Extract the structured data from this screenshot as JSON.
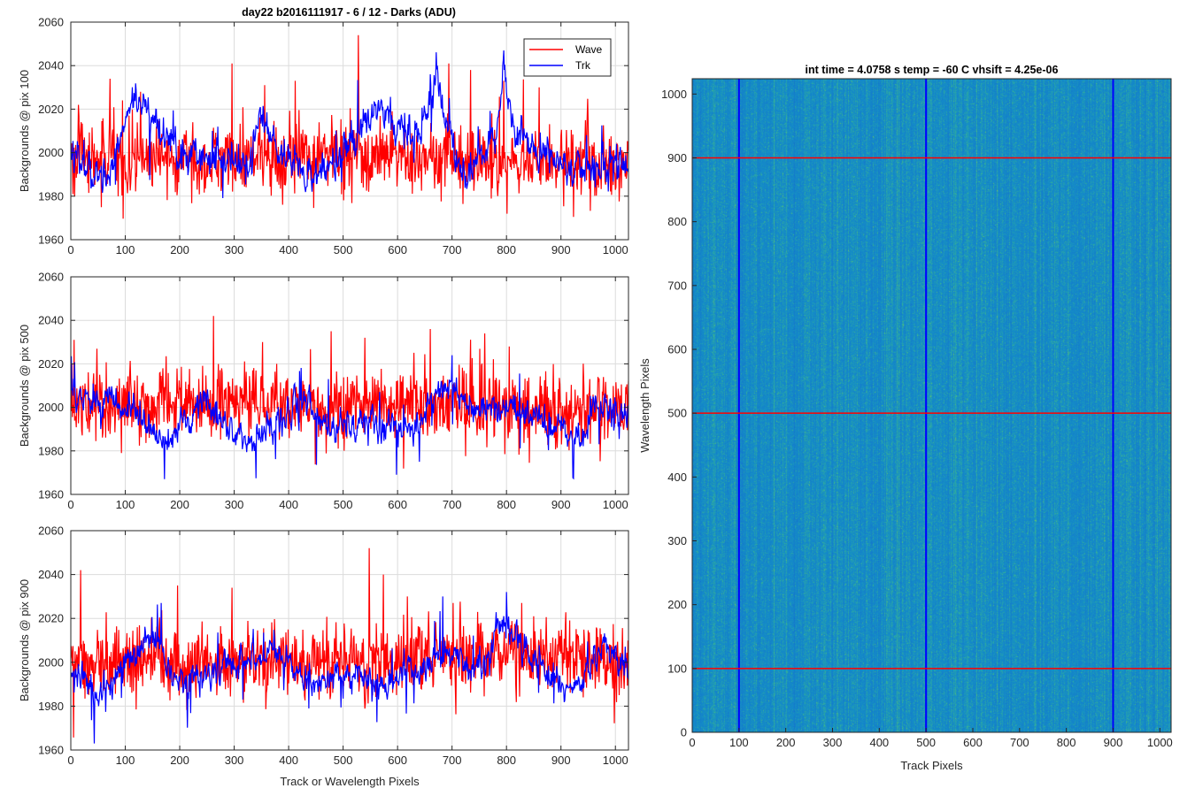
{
  "figure_title": "day22 b2016111917 - 6 / 12 - Darks (ADU)",
  "colors": {
    "wave": "#ff0000",
    "trk": "#0000ff",
    "grid": "#dcdcdc",
    "axis": "#262626",
    "heat_base": "#1a8fce"
  },
  "chart_data": [
    {
      "type": "line",
      "ylabel": "Backgrounds @ pix 100",
      "xlabel": "",
      "xlim": [
        0,
        1024
      ],
      "ylim": [
        1960,
        2060
      ],
      "xticks": [
        "0",
        "100",
        "200",
        "300",
        "400",
        "500",
        "600",
        "700",
        "800",
        "900",
        "1000"
      ],
      "yticks": [
        "1960",
        "1980",
        "2000",
        "2020",
        "2040",
        "2060"
      ],
      "grid": true,
      "legend": {
        "position": "top-right",
        "entries": [
          "Wave",
          "Trk"
        ]
      },
      "series": [
        {
          "name": "Wave",
          "color": "#ff0000",
          "mean": 1997,
          "noise": 8,
          "keypoints": [
            [
              0,
              1998
            ],
            [
              300,
              1997
            ],
            [
              530,
              1998
            ],
            [
              740,
              1996
            ],
            [
              1024,
              1995
            ]
          ],
          "spikes": [
            [
              14,
              2022
            ],
            [
              72,
              2034
            ],
            [
              128,
              2028
            ],
            [
              296,
              2041
            ],
            [
              356,
              2031
            ],
            [
              412,
              2033
            ],
            [
              528,
              2054
            ],
            [
              694,
              2041
            ],
            [
              734,
              2038
            ],
            [
              795,
              2033
            ],
            [
              860,
              2030
            ]
          ]
        },
        {
          "name": "Trk",
          "color": "#0000ff",
          "mean": 1995,
          "noise": 7,
          "keypoints": [
            [
              0,
              2002
            ],
            [
              40,
              1992
            ],
            [
              70,
              1990
            ],
            [
              105,
              2015
            ],
            [
              115,
              2028
            ],
            [
              135,
              2020
            ],
            [
              200,
              1998
            ],
            [
              330,
              1997
            ],
            [
              350,
              2018
            ],
            [
              375,
              2002
            ],
            [
              430,
              1988
            ],
            [
              520,
              2006
            ],
            [
              560,
              2020
            ],
            [
              640,
              2006
            ],
            [
              660,
              2026
            ],
            [
              672,
              2036
            ],
            [
              690,
              2010
            ],
            [
              720,
              1990
            ],
            [
              780,
              2006
            ],
            [
              795,
              2040
            ],
            [
              810,
              2010
            ],
            [
              880,
              1996
            ],
            [
              1024,
              1992
            ]
          ],
          "spikes": [
            [
              660,
              2036
            ],
            [
              795,
              2047
            ]
          ]
        }
      ]
    },
    {
      "type": "line",
      "ylabel": "Backgrounds @ pix 500",
      "xlabel": "",
      "xlim": [
        0,
        1024
      ],
      "ylim": [
        1960,
        2060
      ],
      "xticks": [
        "0",
        "100",
        "200",
        "300",
        "400",
        "500",
        "600",
        "700",
        "800",
        "900",
        "1000"
      ],
      "yticks": [
        "1960",
        "1980",
        "2000",
        "2020",
        "2040",
        "2060"
      ],
      "grid": true,
      "series": [
        {
          "name": "Wave",
          "color": "#ff0000",
          "mean": 2000,
          "noise": 8,
          "keypoints": [
            [
              0,
              2001
            ],
            [
              260,
              2002
            ],
            [
              520,
              2000
            ],
            [
              800,
              2001
            ],
            [
              1024,
              1998
            ]
          ],
          "spikes": [
            [
              6,
              2031
            ],
            [
              48,
              2027
            ],
            [
              262,
              2042
            ],
            [
              352,
              2030
            ],
            [
              478,
              2035
            ],
            [
              540,
              2032
            ],
            [
              760,
              2034
            ],
            [
              805,
              2028
            ],
            [
              660,
              2036
            ]
          ]
        },
        {
          "name": "Trk",
          "color": "#0000ff",
          "mean": 1995,
          "noise": 6,
          "keypoints": [
            [
              0,
              2003
            ],
            [
              60,
              2004
            ],
            [
              80,
              2004
            ],
            [
              170,
              1985
            ],
            [
              240,
              2002
            ],
            [
              320,
              1985
            ],
            [
              380,
              1992
            ],
            [
              430,
              2003
            ],
            [
              470,
              1990
            ],
            [
              560,
              1992
            ],
            [
              640,
              1990
            ],
            [
              660,
              2003
            ],
            [
              700,
              2013
            ],
            [
              730,
              2000
            ],
            [
              820,
              2000
            ],
            [
              900,
              1990
            ],
            [
              940,
              1985
            ],
            [
              960,
              2000
            ],
            [
              1024,
              1995
            ]
          ],
          "spikes": [
            [
              640,
              1975
            ],
            [
              700,
              2024
            ]
          ]
        }
      ]
    },
    {
      "type": "line",
      "ylabel": "Backgrounds @ pix 900",
      "xlabel": "Track or Wavelength Pixels",
      "xlim": [
        0,
        1024
      ],
      "ylim": [
        1960,
        2060
      ],
      "xticks": [
        "0",
        "100",
        "200",
        "300",
        "400",
        "500",
        "600",
        "700",
        "800",
        "900",
        "1000"
      ],
      "yticks": [
        "1960",
        "1980",
        "2000",
        "2020",
        "2040",
        "2060"
      ],
      "grid": true,
      "series": [
        {
          "name": "Wave",
          "color": "#ff0000",
          "mean": 2000,
          "noise": 8,
          "keypoints": [
            [
              0,
              2000
            ],
            [
              300,
              2000
            ],
            [
              600,
              2001
            ],
            [
              800,
              2005
            ],
            [
              1024,
              1998
            ]
          ],
          "spikes": [
            [
              18,
              2042
            ],
            [
              196,
              2035
            ],
            [
              296,
              2034
            ],
            [
              548,
              2052
            ],
            [
              574,
              2040
            ],
            [
              618,
              2030
            ],
            [
              702,
              2027
            ]
          ]
        },
        {
          "name": "Trk",
          "color": "#0000ff",
          "mean": 1993,
          "noise": 6,
          "keypoints": [
            [
              0,
              1996
            ],
            [
              50,
              1985
            ],
            [
              150,
              2012
            ],
            [
              200,
              1990
            ],
            [
              280,
              1998
            ],
            [
              380,
              2005
            ],
            [
              440,
              1990
            ],
            [
              520,
              1995
            ],
            [
              580,
              1990
            ],
            [
              680,
              2002
            ],
            [
              760,
              1998
            ],
            [
              790,
              2020
            ],
            [
              840,
              2004
            ],
            [
              900,
              1990
            ],
            [
              940,
              1990
            ],
            [
              980,
              2008
            ],
            [
              1024,
              1998
            ]
          ],
          "spikes": [
            [
              683,
              2030
            ],
            [
              800,
              2032
            ]
          ]
        }
      ]
    },
    {
      "type": "heatmap",
      "title": "int time = 4.0758 s    temp = -60 C    vhsift = 4.25e-06",
      "xlabel": "Track Pixels",
      "ylabel": "Wavelength Pixels",
      "xlim": [
        0,
        1024
      ],
      "ylim": [
        0,
        1024
      ],
      "xticks": [
        "0",
        "100",
        "200",
        "300",
        "400",
        "500",
        "600",
        "700",
        "800",
        "900",
        "1000"
      ],
      "yticks": [
        "0",
        "100",
        "200",
        "300",
        "400",
        "500",
        "600",
        "700",
        "800",
        "900",
        "1000"
      ],
      "grid": false,
      "vertical_markers": {
        "color": "#0000ff",
        "x": [
          100,
          500,
          900
        ]
      },
      "horizontal_markers": {
        "color": "#ff0000",
        "y": [
          100,
          500,
          900
        ]
      }
    }
  ]
}
